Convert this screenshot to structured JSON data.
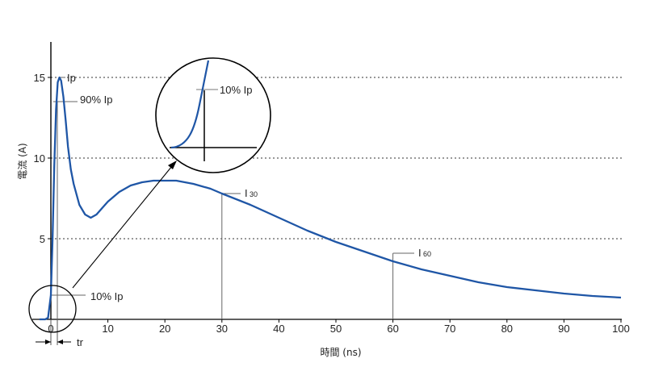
{
  "chart_data": {
    "type": "line",
    "xlabel": "時間 (ns)",
    "ylabel": "電流 (A)",
    "xlim": [
      -2,
      100
    ],
    "ylim": [
      0,
      17
    ],
    "x_ticks": [
      0,
      10,
      20,
      30,
      40,
      50,
      60,
      70,
      80,
      90,
      100
    ],
    "x_tick_labels": [
      "0",
      "10",
      "20",
      "30",
      "40",
      "50",
      "60",
      "70",
      "80",
      "90",
      "100"
    ],
    "y_ticks": [
      5,
      10,
      15
    ],
    "y_tick_labels": [
      "5",
      "10",
      "15"
    ],
    "grid": "horizontal dotted at 5, 10, 15",
    "line_color": "#1f56a6",
    "series": [
      {
        "x": [
          -2,
          -1,
          -0.5,
          0,
          0.3,
          0.6,
          0.9,
          1.2,
          1.5,
          1.8,
          2.2,
          2.6,
          3,
          3.5,
          4,
          5,
          6,
          7,
          8,
          9,
          10,
          12,
          14,
          16,
          18,
          20,
          22,
          25,
          28,
          30,
          35,
          40,
          45,
          50,
          55,
          60,
          65,
          70,
          75,
          80,
          85,
          90,
          95,
          100
        ],
        "y": [
          0,
          0,
          0.1,
          1.5,
          5,
          9.5,
          13,
          14.7,
          15.0,
          14.8,
          13.8,
          12.3,
          10.7,
          9.3,
          8.4,
          7.1,
          6.5,
          6.3,
          6.5,
          6.9,
          7.3,
          7.9,
          8.3,
          8.5,
          8.6,
          8.6,
          8.6,
          8.4,
          8.1,
          7.8,
          7.1,
          6.3,
          5.5,
          4.8,
          4.2,
          3.6,
          3.1,
          2.7,
          2.3,
          2.0,
          1.8,
          1.6,
          1.45,
          1.35
        ]
      }
    ],
    "annotations": [
      {
        "text": "Ip",
        "x": 1.5,
        "y": 15
      },
      {
        "text": "90% Ip",
        "x": 1.2,
        "y": 13.5
      },
      {
        "text": "I",
        "sub": "30",
        "x": 30,
        "y": 7.8
      },
      {
        "text": "I",
        "sub": "60",
        "x": 60,
        "y": 4.1
      },
      {
        "text": "10% Ip",
        "x": 0,
        "y": 1.5
      },
      {
        "text": "tr"
      }
    ],
    "inset_label": "10% Ip"
  }
}
